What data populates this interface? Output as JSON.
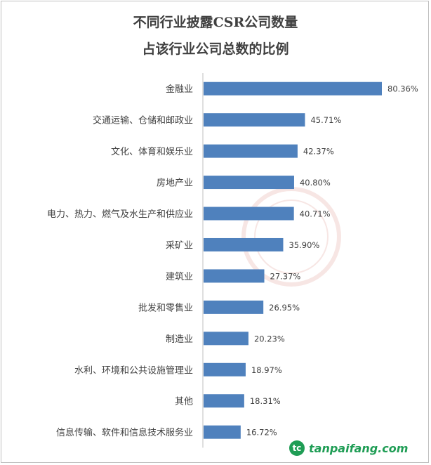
{
  "chart_data": {
    "type": "bar",
    "orientation": "horizontal",
    "title": "不同行业披露CSR公司数量",
    "subtitle": "占该行业公司总数的比例",
    "categories": [
      "金融业",
      "交通运输、仓储和邮政业",
      "文化、体育和娱乐业",
      "房地产业",
      "电力、热力、燃气及水生产和供应业",
      "采矿业",
      "建筑业",
      "批发和零售业",
      "制造业",
      "水利、环境和公共设施管理业",
      "其他",
      "信息传输、软件和信息技术服务业"
    ],
    "values": [
      80.36,
      45.71,
      42.37,
      40.8,
      40.71,
      35.9,
      27.37,
      26.95,
      20.23,
      18.97,
      18.31,
      16.72
    ],
    "value_labels": [
      "80.36%",
      "45.71%",
      "42.37%",
      "40.80%",
      "40.71%",
      "35.90%",
      "27.37%",
      "26.95%",
      "20.23%",
      "18.97%",
      "18.31%",
      "16.72%"
    ],
    "xlim": [
      0,
      100
    ],
    "grid": false,
    "legend": "none",
    "bar_color": "#4f81bd"
  },
  "brand": {
    "logo_text": "tc",
    "site": "tanpaifang.com"
  }
}
